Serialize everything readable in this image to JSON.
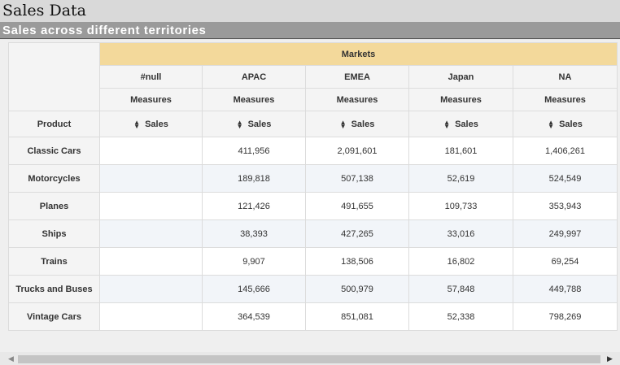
{
  "page": {
    "title": "Sales Data",
    "subtitle": "Sales across different territories"
  },
  "pivot": {
    "column_group_label": "Markets",
    "columns": [
      "#null",
      "APAC",
      "EMEA",
      "Japan",
      "NA"
    ],
    "measures_label": "Measures",
    "measure_name": "Sales",
    "row_header": "Product",
    "rows": [
      {
        "label": "Classic Cars",
        "values": [
          "",
          "411,956",
          "2,091,601",
          "181,601",
          "1,406,261"
        ]
      },
      {
        "label": "Motorcycles",
        "values": [
          "",
          "189,818",
          "507,138",
          "52,619",
          "524,549"
        ]
      },
      {
        "label": "Planes",
        "values": [
          "",
          "121,426",
          "491,655",
          "109,733",
          "353,943"
        ]
      },
      {
        "label": "Ships",
        "values": [
          "",
          "38,393",
          "427,265",
          "33,016",
          "249,997"
        ]
      },
      {
        "label": "Trains",
        "values": [
          "",
          "9,907",
          "138,506",
          "16,802",
          "69,254"
        ]
      },
      {
        "label": "Trucks and Buses",
        "values": [
          "",
          "145,666",
          "500,979",
          "57,848",
          "449,788"
        ]
      },
      {
        "label": "Vintage Cars",
        "values": [
          "",
          "364,539",
          "851,081",
          "52,338",
          "798,269"
        ]
      }
    ],
    "colors": {
      "header_accent": "#f3d99b",
      "row_alt": "#f2f5f9",
      "title_bar": "#9a9a9a"
    }
  },
  "scrollbar": {
    "left_icon": "arrow-left-icon",
    "right_icon": "arrow-right-icon"
  }
}
